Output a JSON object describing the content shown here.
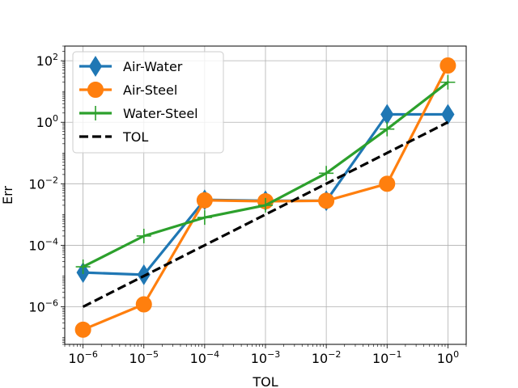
{
  "chart_data": {
    "type": "line",
    "scale": {
      "x": "log",
      "y": "log"
    },
    "xlabel": "TOL",
    "ylabel": "Err",
    "grid": true,
    "legend_position": "top-left",
    "xlim": [
      5e-07,
      2
    ],
    "ylim": [
      6e-08,
      300
    ],
    "x_ticks": [
      {
        "value": 1e-06,
        "base": "10",
        "exp": "−6"
      },
      {
        "value": 1e-05,
        "base": "10",
        "exp": "−5"
      },
      {
        "value": 0.0001,
        "base": "10",
        "exp": "−4"
      },
      {
        "value": 0.001,
        "base": "10",
        "exp": "−3"
      },
      {
        "value": 0.01,
        "base": "10",
        "exp": "−2"
      },
      {
        "value": 0.1,
        "base": "10",
        "exp": "−1"
      },
      {
        "value": 1,
        "base": "10",
        "exp": "0"
      }
    ],
    "y_ticks": [
      {
        "value": 1e-06,
        "base": "10",
        "exp": "−6"
      },
      {
        "value": 0.0001,
        "base": "10",
        "exp": "−4"
      },
      {
        "value": 0.01,
        "base": "10",
        "exp": "−2"
      },
      {
        "value": 1,
        "base": "10",
        "exp": "0"
      },
      {
        "value": 100,
        "base": "10",
        "exp": "2"
      }
    ],
    "x": [
      1e-06,
      1e-05,
      0.0001,
      0.001,
      0.01,
      0.1,
      1
    ],
    "series": [
      {
        "name": "Air-Water",
        "color": "#1f77b4",
        "marker": "diamond",
        "style": "solid",
        "values": [
          1.3e-05,
          1.1e-05,
          0.003,
          0.0028,
          0.0028,
          1.8,
          1.8
        ]
      },
      {
        "name": "Air-Steel",
        "color": "#ff7f0e",
        "marker": "circle",
        "style": "solid",
        "values": [
          1.8e-07,
          1.2e-06,
          0.0029,
          0.0027,
          0.0028,
          0.01,
          70
        ]
      },
      {
        "name": "Water-Steel",
        "color": "#2ca02c",
        "marker": "plus",
        "style": "solid",
        "values": [
          2e-05,
          0.0002,
          0.0008,
          0.002,
          0.022,
          0.6,
          20
        ]
      },
      {
        "name": "TOL",
        "color": "#000000",
        "marker": "none",
        "style": "dashed",
        "values": [
          1e-06,
          1e-05,
          0.0001,
          0.001,
          0.01,
          0.1,
          1
        ]
      }
    ]
  }
}
